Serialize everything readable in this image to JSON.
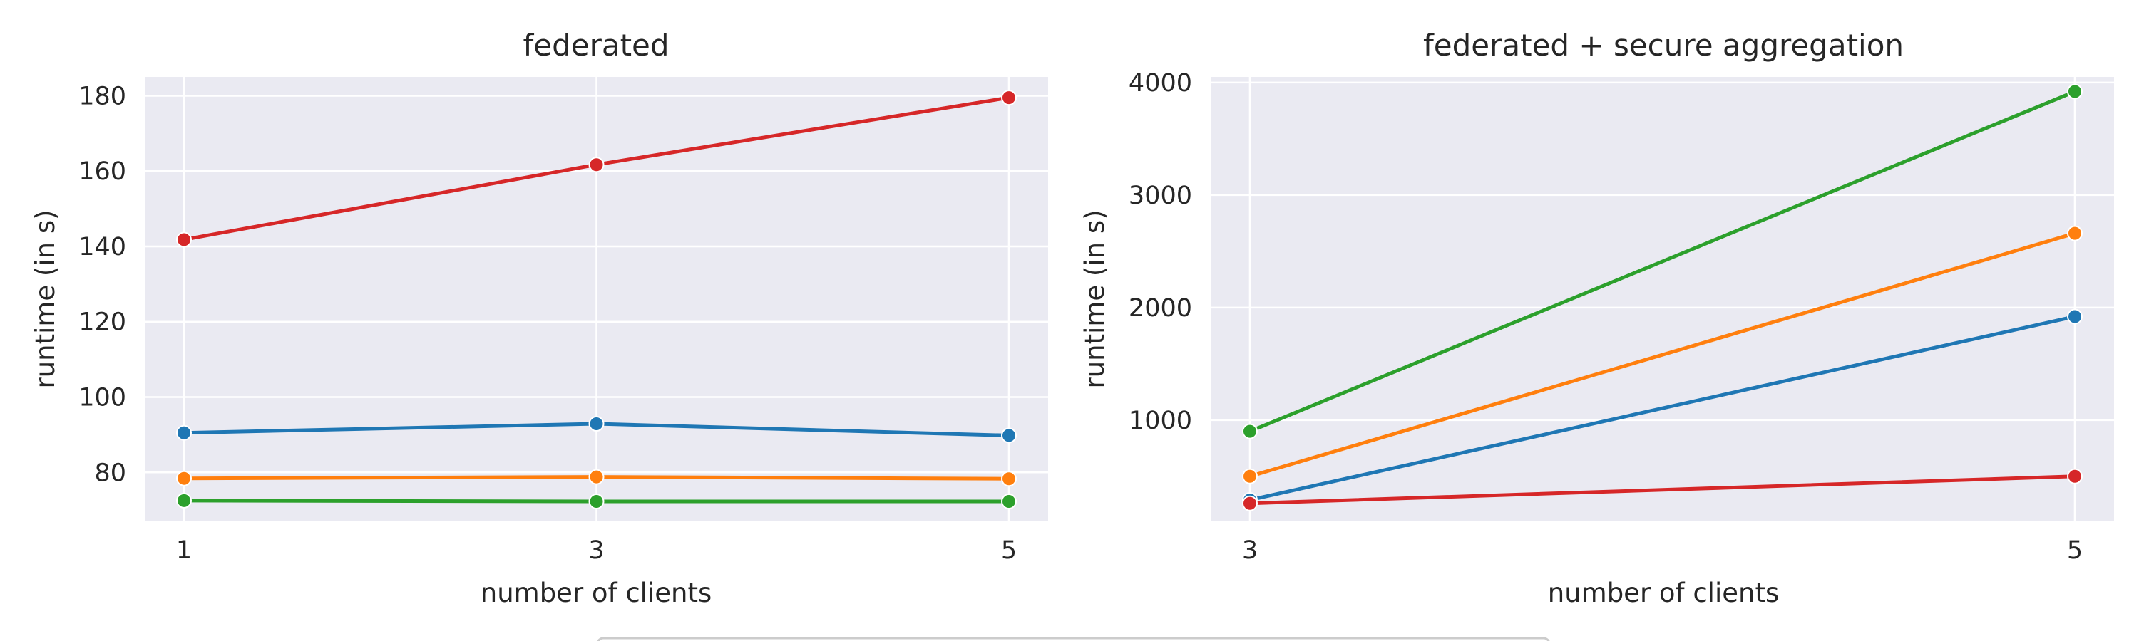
{
  "chart_data": [
    {
      "type": "line",
      "title": "federated",
      "xlabel": "number of clients",
      "ylabel": "runtime (in s)",
      "x": [
        1,
        3,
        5
      ],
      "xticks": [
        "1",
        "3",
        "5"
      ],
      "yticks": [
        "80",
        "100",
        "120",
        "140",
        "160",
        "180"
      ],
      "ylim": [
        67,
        185
      ],
      "grid": true,
      "series": [
        {
          "color": "#d62728",
          "values": [
            141.8,
            161.7,
            179.5
          ]
        },
        {
          "color": "#1f77b4",
          "values": [
            90.5,
            92.9,
            89.8
          ]
        },
        {
          "color": "#ff7f0e",
          "values": [
            78.4,
            78.8,
            78.3
          ]
        },
        {
          "color": "#2ca02c",
          "values": [
            72.5,
            72.3,
            72.3
          ]
        }
      ]
    },
    {
      "type": "line",
      "title": "federated + secure aggregation",
      "xlabel": "number of clients",
      "ylabel": "runtime (in s)",
      "x": [
        3,
        5
      ],
      "xticks": [
        "3",
        "5"
      ],
      "yticks": [
        "1000",
        "2000",
        "3000",
        "4000"
      ],
      "ylim": [
        100,
        4050
      ],
      "grid": true,
      "series": [
        {
          "color": "#2ca02c",
          "values": [
            900,
            3920
          ]
        },
        {
          "color": "#ff7f0e",
          "values": [
            500,
            2660
          ]
        },
        {
          "color": "#1f77b4",
          "values": [
            290,
            1920
          ]
        },
        {
          "color": "#d62728",
          "values": [
            260,
            500
          ]
        }
      ]
    }
  ]
}
